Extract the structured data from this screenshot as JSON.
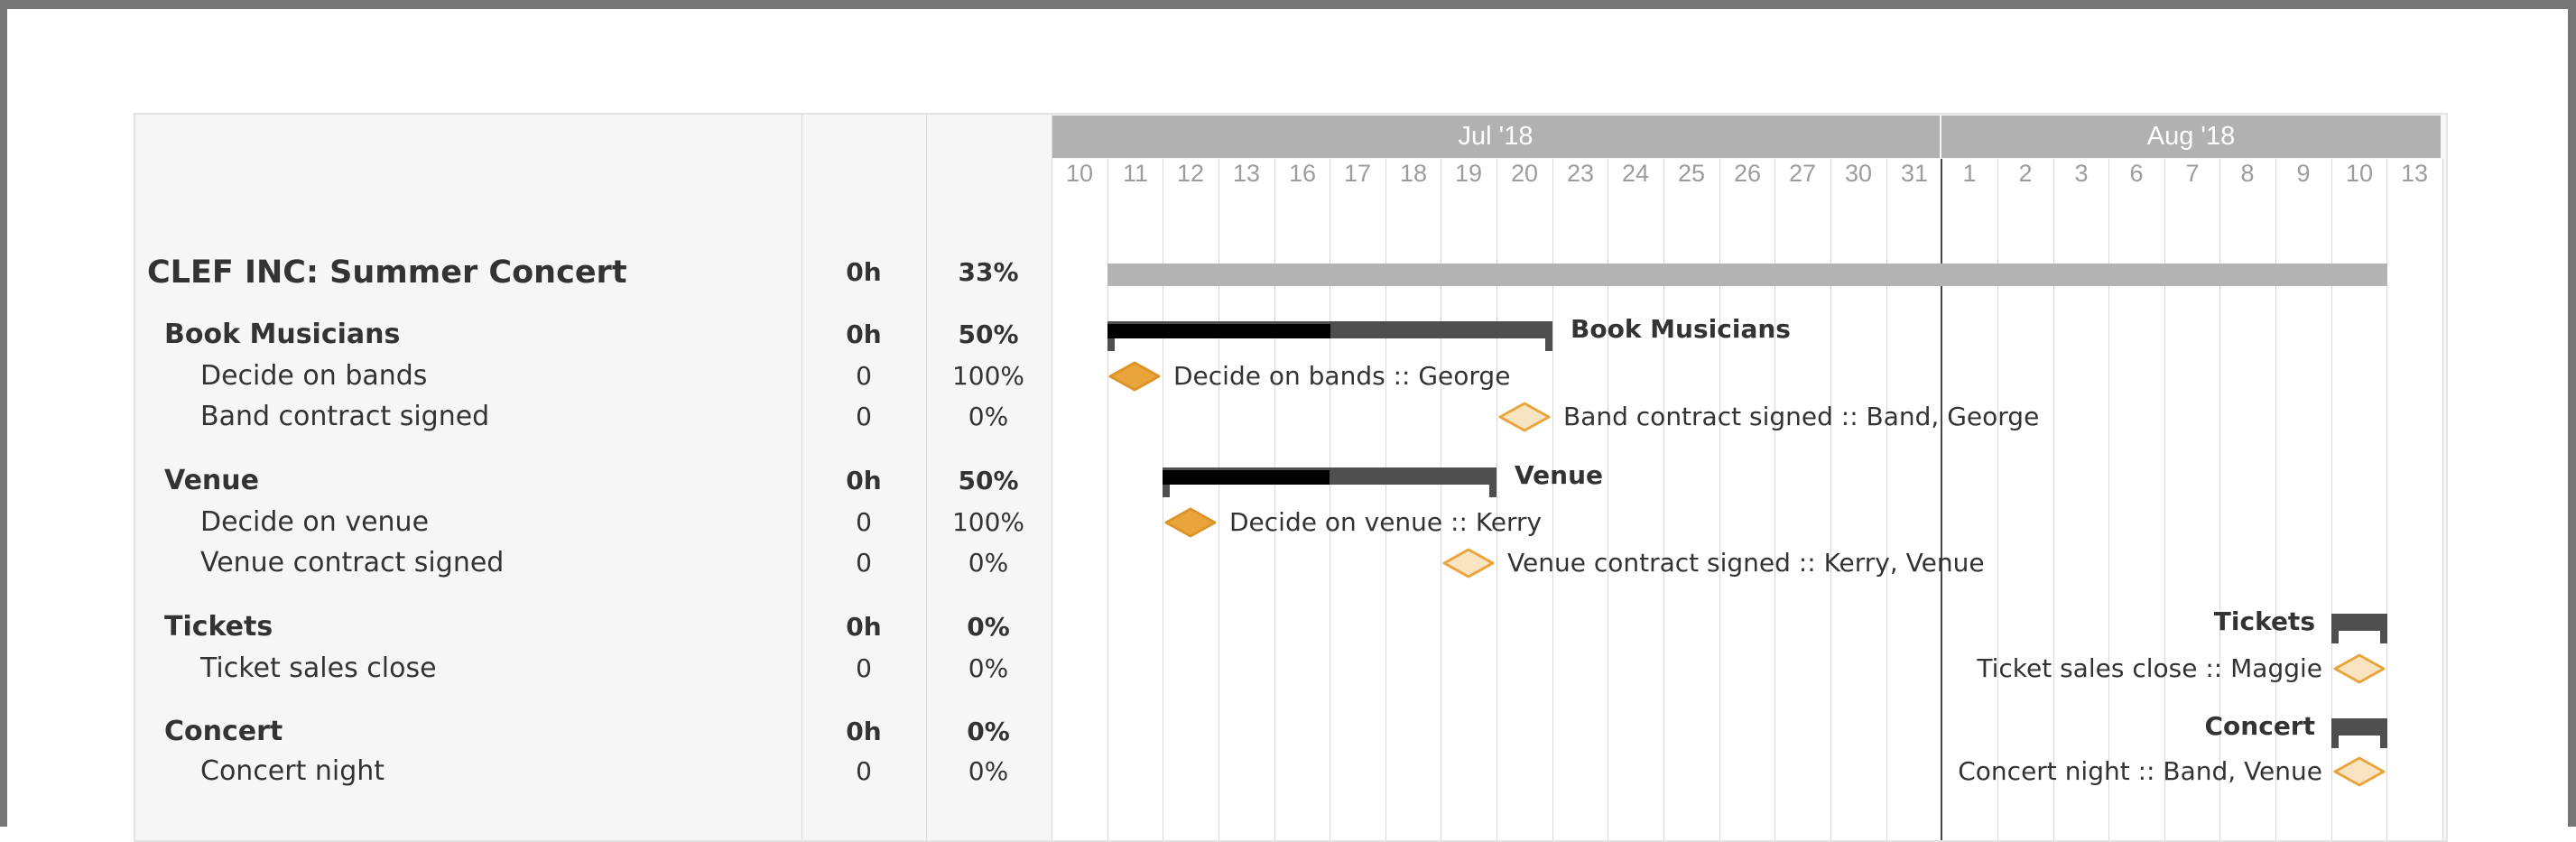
{
  "gantt": {
    "colors": {
      "accent_orange": "#e9a43c",
      "accent_orange_light": "#f8e4c0",
      "group_bar": "#4f4f4f",
      "progress_fill": "#000000",
      "summary_bar": "#b3b3b3",
      "month_header_bg": "#b1b1b1",
      "grid_line": "#d9d9d9",
      "month_boundary_line": "#474747",
      "text": "#333333",
      "day_text": "#9c9c9c",
      "panel_bg": "#f6f6f6"
    },
    "timeline": {
      "months": [
        {
          "label": "Jul '18",
          "days": [
            "10",
            "11",
            "12",
            "13",
            "16",
            "17",
            "18",
            "19",
            "20",
            "23",
            "24",
            "25",
            "26",
            "27",
            "30",
            "31"
          ]
        },
        {
          "label": "Aug '18",
          "days": [
            "1",
            "2",
            "3",
            "6",
            "7",
            "8",
            "9",
            "10",
            "13"
          ]
        }
      ],
      "month_boundary_index": 16
    },
    "table": {
      "rows": [
        {
          "name": "CLEF INC: Summer Concert",
          "hours": "0h",
          "percent": "33%",
          "level": "project"
        },
        {
          "name": "Book Musicians",
          "hours": "0h",
          "percent": "50%",
          "level": "group"
        },
        {
          "name": "Decide on bands",
          "hours": "0",
          "percent": "100%",
          "level": "task"
        },
        {
          "name": "Band contract signed",
          "hours": "0",
          "percent": "0%",
          "level": "task"
        },
        {
          "name": "Venue",
          "hours": "0h",
          "percent": "50%",
          "level": "group"
        },
        {
          "name": "Decide on venue",
          "hours": "0",
          "percent": "100%",
          "level": "task"
        },
        {
          "name": "Venue contract signed",
          "hours": "0",
          "percent": "0%",
          "level": "task"
        },
        {
          "name": "Tickets",
          "hours": "0h",
          "percent": "0%",
          "level": "group"
        },
        {
          "name": "Ticket sales close",
          "hours": "0",
          "percent": "0%",
          "level": "task"
        },
        {
          "name": "Concert",
          "hours": "0h",
          "percent": "0%",
          "level": "group"
        },
        {
          "name": "Concert night",
          "hours": "0",
          "percent": "0%",
          "level": "task"
        }
      ]
    },
    "chart": {
      "bars": [
        {
          "row": 0,
          "kind": "summary",
          "start": 1,
          "span": 23,
          "progress": 0,
          "label": "",
          "side": "none"
        },
        {
          "row": 1,
          "kind": "group",
          "start": 1,
          "span": 8,
          "progress": 50,
          "label": "Book Musicians",
          "side": "right"
        },
        {
          "row": 4,
          "kind": "group",
          "start": 2,
          "span": 6,
          "progress": 50,
          "label": "Venue",
          "side": "right"
        },
        {
          "row": 7,
          "kind": "group",
          "start": 23,
          "span": 1,
          "progress": 0,
          "label": "Tickets",
          "side": "left"
        },
        {
          "row": 9,
          "kind": "group",
          "start": 23,
          "span": 1,
          "progress": 0,
          "label": "Concert",
          "side": "left"
        }
      ],
      "milestones": [
        {
          "row": 2,
          "day": 1,
          "complete": true,
          "label": "Decide on bands :: George",
          "side": "right"
        },
        {
          "row": 3,
          "day": 8,
          "complete": false,
          "label": "Band contract signed :: Band, George",
          "side": "right"
        },
        {
          "row": 5,
          "day": 2,
          "complete": true,
          "label": "Decide on venue :: Kerry",
          "side": "right"
        },
        {
          "row": 6,
          "day": 7,
          "complete": false,
          "label": "Venue contract signed :: Kerry, Venue",
          "side": "right"
        },
        {
          "row": 8,
          "day": 23,
          "complete": false,
          "label": "Ticket sales close :: Maggie",
          "side": "left"
        },
        {
          "row": 10,
          "day": 23,
          "complete": false,
          "label": "Concert night :: Band, Venue",
          "side": "left"
        }
      ]
    }
  },
  "chart_data": {
    "type": "bar",
    "subtype": "gantt",
    "title": "CLEF INC: Summer Concert",
    "timeline_days": [
      "Jul 10",
      "Jul 11",
      "Jul 12",
      "Jul 13",
      "Jul 16",
      "Jul 17",
      "Jul 18",
      "Jul 19",
      "Jul 20",
      "Jul 23",
      "Jul 24",
      "Jul 25",
      "Jul 26",
      "Jul 27",
      "Jul 30",
      "Jul 31",
      "Aug 1",
      "Aug 2",
      "Aug 3",
      "Aug 6",
      "Aug 7",
      "Aug 8",
      "Aug 9",
      "Aug 10",
      "Aug 13"
    ],
    "tasks": [
      {
        "name": "CLEF INC: Summer Concert",
        "type": "project",
        "start": "Jul 11 '18",
        "end": "Aug 10 '18",
        "hours": "0h",
        "percent": 33
      },
      {
        "name": "Book Musicians",
        "type": "group",
        "start": "Jul 11",
        "end": "Jul 20",
        "hours": "0h",
        "percent": 50
      },
      {
        "name": "Decide on bands",
        "type": "milestone",
        "date": "Jul 11",
        "hours": "0",
        "percent": 100,
        "resources": "George"
      },
      {
        "name": "Band contract signed",
        "type": "milestone",
        "date": "Jul 20",
        "hours": "0",
        "percent": 0,
        "resources": "Band, George"
      },
      {
        "name": "Venue",
        "type": "group",
        "start": "Jul 12",
        "end": "Jul 19",
        "hours": "0h",
        "percent": 50
      },
      {
        "name": "Decide on venue",
        "type": "milestone",
        "date": "Jul 12",
        "hours": "0",
        "percent": 100,
        "resources": "Kerry"
      },
      {
        "name": "Venue contract signed",
        "type": "milestone",
        "date": "Jul 19",
        "hours": "0",
        "percent": 0,
        "resources": "Kerry, Venue"
      },
      {
        "name": "Tickets",
        "type": "group",
        "start": "Aug 10",
        "end": "Aug 10",
        "hours": "0h",
        "percent": 0
      },
      {
        "name": "Ticket sales close",
        "type": "milestone",
        "date": "Aug 10",
        "hours": "0",
        "percent": 0,
        "resources": "Maggie"
      },
      {
        "name": "Concert",
        "type": "group",
        "start": "Aug 10",
        "end": "Aug 10",
        "hours": "0h",
        "percent": 0
      },
      {
        "name": "Concert night",
        "type": "milestone",
        "date": "Aug 10",
        "hours": "0",
        "percent": 0,
        "resources": "Band, Venue"
      }
    ],
    "legend_position": "none",
    "grid": true
  }
}
